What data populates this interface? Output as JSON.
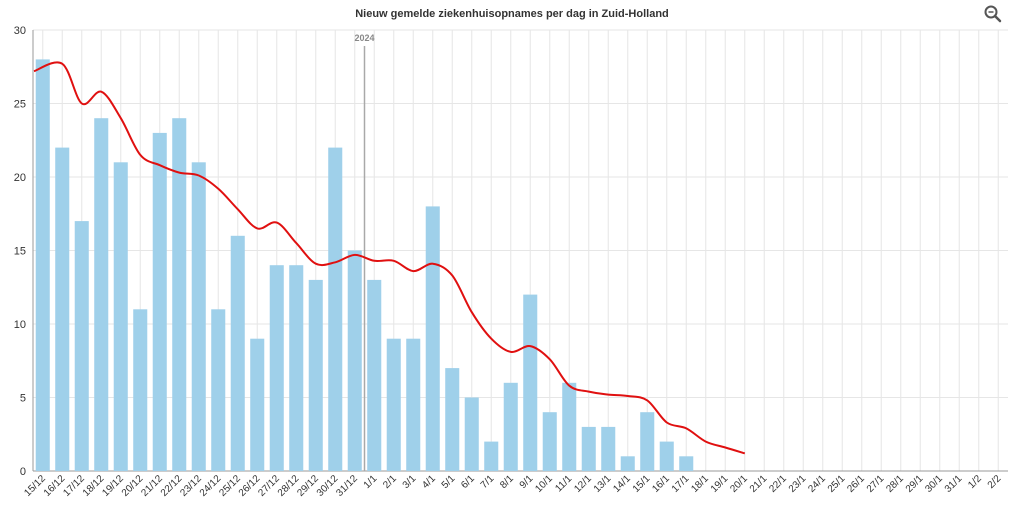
{
  "toolbar": {
    "zoom_icon": "zoom-icon"
  },
  "colors": {
    "bar": "#9fd0ea",
    "line": "#e01010",
    "grid": "#e6e6e6",
    "axis": "#999999",
    "marker": "#a9a9a9",
    "text": "#333333"
  },
  "chart_data": {
    "type": "bar",
    "title": "Nieuw gemelde ziekenhuisopnames per dag in Zuid-Holland",
    "xlabel": "",
    "ylabel": "",
    "ylim": [
      0,
      30
    ],
    "yticks": [
      0,
      5,
      10,
      15,
      20,
      25,
      30
    ],
    "grid": true,
    "categories": [
      "15/12",
      "16/12",
      "17/12",
      "18/12",
      "19/12",
      "20/12",
      "21/12",
      "22/12",
      "23/12",
      "24/12",
      "25/12",
      "26/12",
      "27/12",
      "28/12",
      "29/12",
      "30/12",
      "31/12",
      "1/1",
      "2/1",
      "3/1",
      "4/1",
      "5/1",
      "6/1",
      "7/1",
      "8/1",
      "9/1",
      "10/1",
      "11/1",
      "12/1",
      "13/1",
      "14/1",
      "15/1",
      "16/1",
      "17/1",
      "18/1",
      "19/1",
      "20/1",
      "21/1",
      "22/1",
      "23/1",
      "24/1",
      "25/1",
      "26/1",
      "27/1",
      "28/1",
      "29/1",
      "30/1",
      "31/1",
      "1/2",
      "2/2"
    ],
    "series": [
      {
        "type": "bar",
        "values": [
          28,
          22,
          17,
          24,
          21,
          11,
          23,
          24,
          21,
          11,
          16,
          9,
          14,
          14,
          13,
          22,
          15,
          13,
          9,
          9,
          18,
          7,
          5,
          2,
          6,
          12,
          4,
          6,
          3,
          3,
          1,
          4,
          2,
          1,
          null,
          null,
          null,
          null,
          null,
          null,
          null,
          null,
          null,
          null,
          null,
          null,
          null,
          null,
          null,
          null
        ]
      },
      {
        "type": "line",
        "values": [
          27.2,
          27.7,
          25.0,
          25.8,
          24.0,
          21.5,
          20.8,
          20.3,
          20.1,
          19.2,
          17.8,
          16.5,
          16.9,
          15.5,
          14.1,
          14.2,
          14.7,
          14.3,
          14.3,
          13.6,
          14.1,
          13.3,
          10.8,
          9.0,
          8.1,
          8.5,
          7.6,
          5.8,
          5.4,
          5.2,
          5.1,
          4.8,
          3.3,
          2.9,
          2.0,
          1.6,
          1.2,
          null,
          null,
          null,
          null,
          null,
          null,
          null,
          null,
          null,
          null,
          null,
          null,
          null
        ]
      }
    ],
    "annotations": [
      {
        "label": "2024",
        "at_category": "1/1"
      }
    ]
  }
}
